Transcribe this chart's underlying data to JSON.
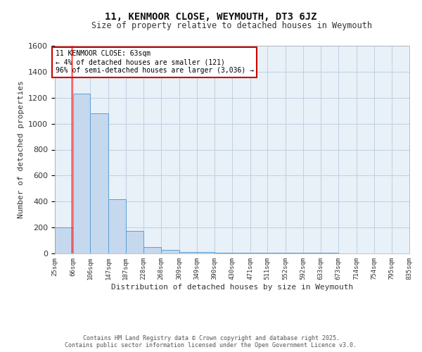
{
  "title1": "11, KENMOOR CLOSE, WEYMOUTH, DT3 6JZ",
  "title2": "Size of property relative to detached houses in Weymouth",
  "xlabel": "Distribution of detached houses by size in Weymouth",
  "ylabel": "Number of detached properties",
  "bar_edges": [
    25,
    66,
    106,
    147,
    187,
    228,
    268,
    309,
    349,
    390,
    430,
    471,
    511,
    552,
    592,
    633,
    673,
    714,
    754,
    795,
    835
  ],
  "bar_heights": [
    200,
    1230,
    1080,
    415,
    175,
    50,
    25,
    12,
    10,
    8,
    6,
    5,
    5,
    4,
    3,
    3,
    2,
    2,
    2,
    2
  ],
  "bar_color": "#c5d8ee",
  "bar_edge_color": "#5a9fd4",
  "grid_color": "#c0cfe0",
  "background_color": "#e8f0f8",
  "red_line_x": 63,
  "annotation_text": "11 KENMOOR CLOSE: 63sqm\n← 4% of detached houses are smaller (121)\n96% of semi-detached houses are larger (3,036) →",
  "annotation_box_color": "#ffffff",
  "annotation_border_color": "#cc0000",
  "ylim": [
    0,
    1600
  ],
  "yticks": [
    0,
    200,
    400,
    600,
    800,
    1000,
    1200,
    1400,
    1600
  ],
  "tick_labels": [
    "25sqm",
    "66sqm",
    "106sqm",
    "147sqm",
    "187sqm",
    "228sqm",
    "268sqm",
    "309sqm",
    "349sqm",
    "390sqm",
    "430sqm",
    "471sqm",
    "511sqm",
    "552sqm",
    "592sqm",
    "633sqm",
    "673sqm",
    "714sqm",
    "754sqm",
    "795sqm",
    "835sqm"
  ],
  "footer1": "Contains HM Land Registry data © Crown copyright and database right 2025.",
  "footer2": "Contains public sector information licensed under the Open Government Licence v3.0."
}
